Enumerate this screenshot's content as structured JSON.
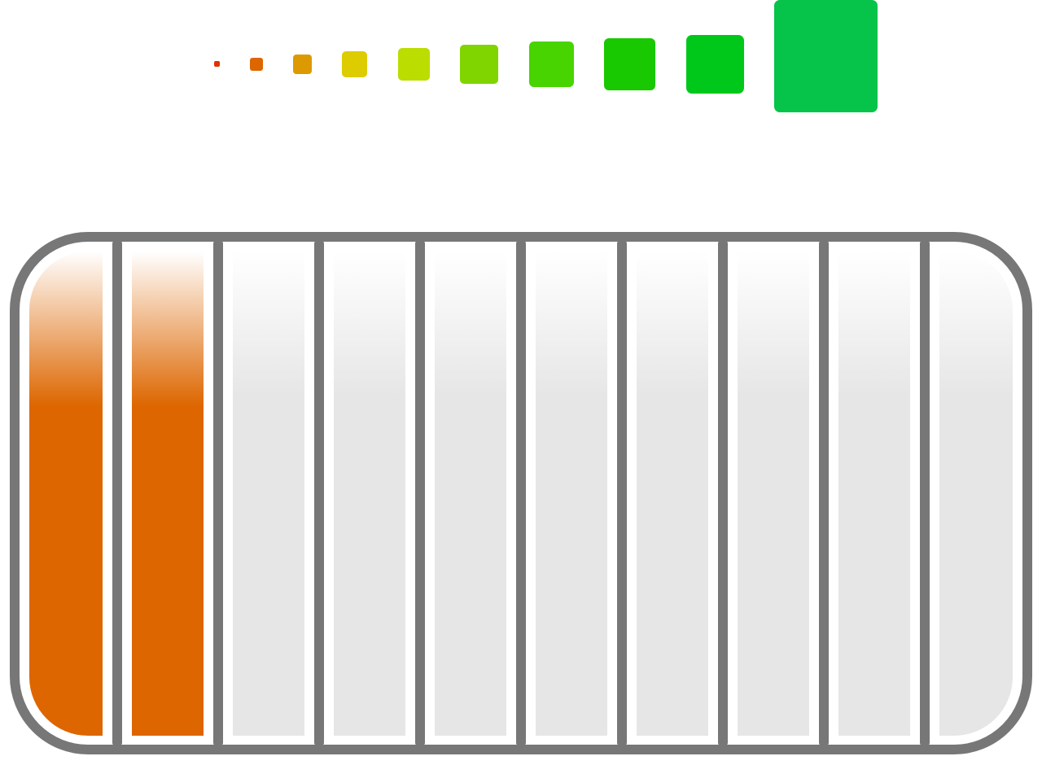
{
  "meter": {
    "total_segments": 10,
    "filled_segments": 2,
    "fill_color": "#dd6600",
    "empty_color": "#e6e6e6",
    "frame_color": "#777777"
  },
  "level_scale": {
    "colors": [
      "#dd3300",
      "#dd6600",
      "#dd9900",
      "#ddcc00",
      "#bbdd00",
      "#80d400",
      "#48d400",
      "#18c800",
      "#00c81a",
      "#06c34a"
    ]
  }
}
